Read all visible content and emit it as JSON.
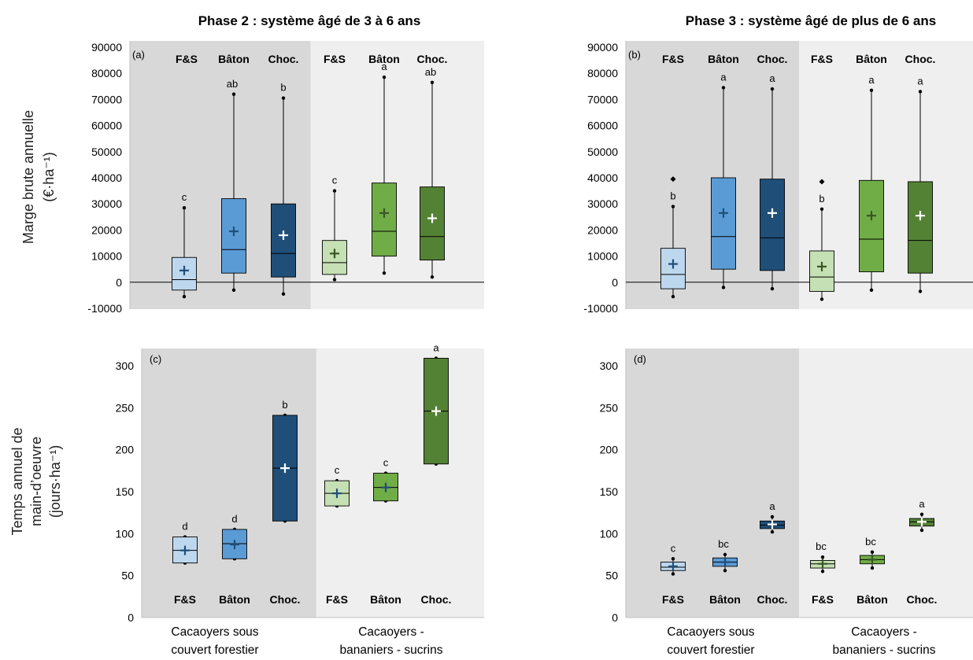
{
  "colors": {
    "bg_group1": "#d8d8d8",
    "bg_group2": "#efefef",
    "fs": "#bdd7ee",
    "baton": "#5b9bd5",
    "choc_blue": "#1f4e79",
    "fs_green": "#c5e0b4",
    "baton_green": "#70ad47",
    "choc_green": "#548235",
    "mean_dark_blue": "#1f4e79",
    "mean_dark_green": "#385723",
    "mean_white": "#ffffff"
  },
  "titles": {
    "phase2": "Phase 2 : système âgé de 3 à 6 ans",
    "phase3": "Phase 3 : système âgé de plus de 6 ans"
  },
  "y_labels": {
    "top_line1": "Marge brute annuelle",
    "top_line2": "(€·ha⁻¹)",
    "bottom_line1": "Temps annuel de",
    "bottom_line2": "main-d’oeuvre",
    "bottom_line3": "(jours·ha⁻¹)"
  },
  "groups": {
    "g1_line1": "Cacaoyers sous",
    "g1_line2": "couvert forestier",
    "g2_line1": "Cacaoyers -",
    "g2_line2": "bananiers - sucrins"
  },
  "chart_data": [
    {
      "panel": "(a)",
      "type": "box",
      "title": "Phase 2 : système âgé de 3 à 6 ans",
      "ylabel": "Marge brute annuelle (€·ha⁻¹)",
      "ylim": [
        -10000,
        90000
      ],
      "yticks": [
        -10000,
        0,
        10000,
        20000,
        30000,
        40000,
        50000,
        60000,
        70000,
        80000,
        90000
      ],
      "category_labels_position": "top",
      "categories": [
        "F&S",
        "Bâton",
        "Choc.",
        "F&S",
        "Bâton",
        "Choc."
      ],
      "boxes": [
        {
          "min": -5500,
          "q1": -3000,
          "median": 1000,
          "q3": 9500,
          "max": 28500,
          "mean": 4500,
          "letter": "c",
          "color": "fs",
          "mean_color": "mean_dark_blue"
        },
        {
          "min": -3000,
          "q1": 3500,
          "median": 12500,
          "q3": 32000,
          "max": 72000,
          "mean": 19500,
          "letter": "ab",
          "color": "baton",
          "mean_color": "mean_dark_blue"
        },
        {
          "min": -4500,
          "q1": 2000,
          "median": 11000,
          "q3": 30000,
          "max": 70500,
          "mean": 18000,
          "letter": "b",
          "color": "choc_blue",
          "mean_color": "mean_white"
        },
        {
          "min": 1000,
          "q1": 3000,
          "median": 7500,
          "q3": 16000,
          "max": 35000,
          "mean": 11000,
          "letter": "c",
          "color": "fs_green",
          "mean_color": "mean_dark_green"
        },
        {
          "min": 3500,
          "q1": 10000,
          "median": 19500,
          "q3": 38000,
          "max": 78500,
          "mean": 26500,
          "letter": "a",
          "color": "baton_green",
          "mean_color": "mean_dark_green"
        },
        {
          "min": 2000,
          "q1": 8500,
          "median": 17500,
          "q3": 36500,
          "max": 76500,
          "mean": 24500,
          "letter": "ab",
          "color": "choc_green",
          "mean_color": "mean_white"
        }
      ]
    },
    {
      "panel": "(b)",
      "type": "box",
      "title": "Phase 3 : système âgé de plus de 6 ans",
      "ylim": [
        -10000,
        90000
      ],
      "yticks": [
        -10000,
        0,
        10000,
        20000,
        30000,
        40000,
        50000,
        60000,
        70000,
        80000,
        90000
      ],
      "category_labels_position": "top",
      "categories": [
        "F&S",
        "Bâton",
        "Choc.",
        "F&S",
        "Bâton",
        "Choc."
      ],
      "boxes": [
        {
          "min": -5500,
          "q1": -2500,
          "median": 3000,
          "q3": 13000,
          "max": 29000,
          "mean": 7000,
          "outlier": 39500,
          "letter": "b",
          "color": "fs",
          "mean_color": "mean_dark_blue"
        },
        {
          "min": -2000,
          "q1": 5000,
          "median": 17500,
          "q3": 40000,
          "max": 74500,
          "mean": 26500,
          "letter": "a",
          "color": "baton",
          "mean_color": "mean_dark_blue"
        },
        {
          "min": -2500,
          "q1": 4500,
          "median": 17000,
          "q3": 39500,
          "max": 74000,
          "mean": 26500,
          "letter": "a",
          "color": "choc_blue",
          "mean_color": "mean_white"
        },
        {
          "min": -6500,
          "q1": -3500,
          "median": 2000,
          "q3": 12000,
          "max": 28000,
          "mean": 6000,
          "outlier": 38500,
          "letter": "b",
          "color": "fs_green",
          "mean_color": "mean_dark_green"
        },
        {
          "min": -3000,
          "q1": 4000,
          "median": 16500,
          "q3": 39000,
          "max": 73500,
          "mean": 25500,
          "letter": "a",
          "color": "baton_green",
          "mean_color": "mean_dark_green"
        },
        {
          "min": -3500,
          "q1": 3500,
          "median": 16000,
          "q3": 38500,
          "max": 73000,
          "mean": 25500,
          "letter": "a",
          "color": "choc_green",
          "mean_color": "mean_white"
        }
      ]
    },
    {
      "panel": "(c)",
      "type": "box",
      "ylabel": "Temps annuel de main-d’oeuvre (jours·ha⁻¹)",
      "ylim": [
        0,
        320
      ],
      "yticks": [
        0,
        50,
        100,
        150,
        200,
        250,
        300
      ],
      "category_labels_position": "bottom",
      "categories": [
        "F&S",
        "Bâton",
        "Choc.",
        "F&S",
        "Bâton",
        "Choc."
      ],
      "group_labels": [
        "Cacaoyers sous couvert forestier",
        "Cacaoyers - bananiers - sucrins"
      ],
      "boxes": [
        {
          "min": 65,
          "q1": 65,
          "median": 80,
          "q3": 96,
          "max": 96,
          "mean": 80,
          "letter": "d",
          "color": "fs",
          "mean_color": "mean_dark_blue"
        },
        {
          "min": 70,
          "q1": 70,
          "median": 88,
          "q3": 105,
          "max": 105,
          "mean": 87,
          "letter": "d",
          "color": "baton",
          "mean_color": "mean_dark_blue"
        },
        {
          "min": 115,
          "q1": 115,
          "median": 178,
          "q3": 241,
          "max": 241,
          "mean": 178,
          "letter": "b",
          "color": "choc_blue",
          "mean_color": "mean_white"
        },
        {
          "min": 133,
          "q1": 133,
          "median": 148,
          "q3": 163,
          "max": 163,
          "mean": 148,
          "letter": "c",
          "color": "fs_green",
          "mean_color": "mean_dark_blue"
        },
        {
          "min": 139,
          "q1": 139,
          "median": 155,
          "q3": 172,
          "max": 172,
          "mean": 155,
          "letter": "c",
          "color": "baton_green",
          "mean_color": "mean_dark_blue"
        },
        {
          "min": 183,
          "q1": 183,
          "median": 246,
          "q3": 309,
          "max": 309,
          "mean": 246,
          "letter": "a",
          "color": "choc_green",
          "mean_color": "mean_white"
        }
      ]
    },
    {
      "panel": "(d)",
      "type": "box",
      "ylim": [
        0,
        320
      ],
      "yticks": [
        0,
        50,
        100,
        150,
        200,
        250,
        300
      ],
      "category_labels_position": "bottom",
      "categories": [
        "F&S",
        "Bâton",
        "Choc.",
        "F&S",
        "Bâton",
        "Choc."
      ],
      "group_labels": [
        "Cacaoyers sous couvert forestier",
        "Cacaoyers - bananiers - sucrins"
      ],
      "boxes": [
        {
          "min": 52,
          "q1": 56,
          "median": 60,
          "q3": 66,
          "max": 70,
          "mean": 61,
          "letter": "c",
          "color": "fs",
          "mean_color": "mean_dark_blue"
        },
        {
          "min": 56,
          "q1": 61,
          "median": 66,
          "q3": 71,
          "max": 75,
          "mean": 66,
          "letter": "bc",
          "color": "baton",
          "mean_color": "mean_dark_blue"
        },
        {
          "min": 102,
          "q1": 106,
          "median": 110,
          "q3": 115,
          "max": 120,
          "mean": 111,
          "letter": "a",
          "color": "choc_blue",
          "mean_color": "mean_white"
        },
        {
          "min": 55,
          "q1": 59,
          "median": 64,
          "q3": 68,
          "max": 72,
          "mean": 64,
          "letter": "bc",
          "color": "fs_green",
          "mean_color": "mean_dark_green"
        },
        {
          "min": 59,
          "q1": 64,
          "median": 69,
          "q3": 74,
          "max": 78,
          "mean": 69,
          "letter": "bc",
          "color": "baton_green",
          "mean_color": "mean_dark_green"
        },
        {
          "min": 104,
          "q1": 109,
          "median": 114,
          "q3": 118,
          "max": 123,
          "mean": 114,
          "letter": "a",
          "color": "choc_green",
          "mean_color": "mean_white"
        }
      ]
    }
  ]
}
